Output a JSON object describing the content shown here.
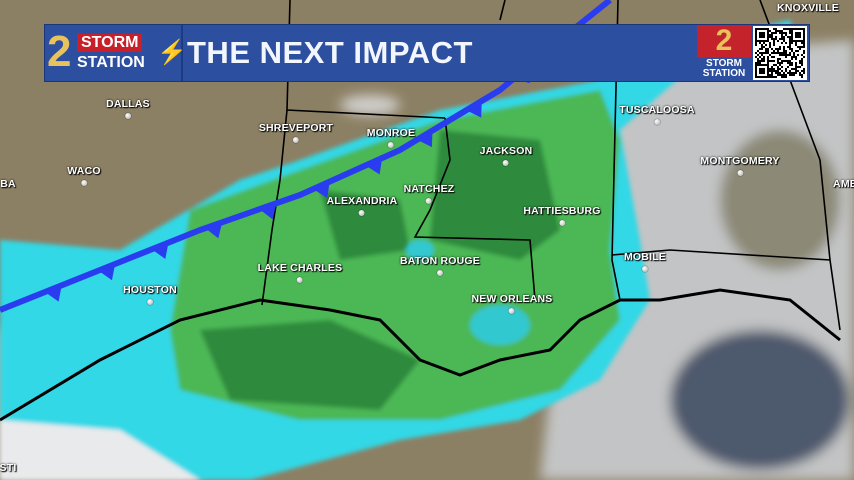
{
  "banner": {
    "logo_number": "2",
    "logo_line1": "STORM",
    "logo_line2": "STATION",
    "title": "THE NEXT IMPACT",
    "right_logo_number": "2",
    "right_logo_line1": "STORM",
    "right_logo_line2": "STATION",
    "qr_code": "qr-code"
  },
  "cities": [
    {
      "name": "DALLAS"
    },
    {
      "name": "SHREVEPORT"
    },
    {
      "name": "MONROE"
    },
    {
      "name": "WACO"
    },
    {
      "name": "ALEXANDRIA"
    },
    {
      "name": "NATCHEZ"
    },
    {
      "name": "JACKSON"
    },
    {
      "name": "HATTIESBURG"
    },
    {
      "name": "TUSCALOOSA"
    },
    {
      "name": "MONTGOMERY"
    },
    {
      "name": "LAKE CHARLES"
    },
    {
      "name": "BATON ROUGE"
    },
    {
      "name": "HOUSTON"
    },
    {
      "name": "NEW ORLEANS"
    },
    {
      "name": "MOBILE"
    }
  ],
  "partial_labels": [
    "BA",
    "AME",
    "STI",
    "KNOXVILLE"
  ],
  "colors": {
    "banner": "#2d4fa0",
    "front": "#2a3cf0",
    "rain_light": "#32d8e6",
    "rain_green": "#4cb854",
    "rain_dark": "#2a7a36",
    "land": "#8c8064",
    "cloud": "#d8dadc"
  }
}
